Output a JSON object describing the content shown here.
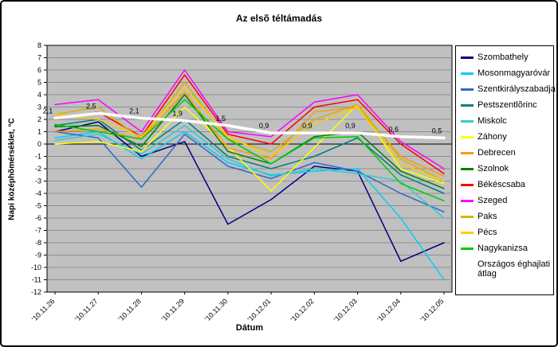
{
  "chart_data": {
    "type": "line",
    "title": "Az elsõ téltámadás",
    "xlabel": "Dátum",
    "ylabel": "Napi középhõmérséklet, °C",
    "ylim": [
      -12,
      8
    ],
    "ytick_step": 1,
    "grid": true,
    "plot_bg": "#c0c0c0",
    "grid_color": "#8f8f8f",
    "legend_position": "right",
    "categories": [
      "'10.11.26",
      "'10.11.27",
      "'10.11.28",
      "'10.11.29",
      "'10.11.30",
      "'10.12.01",
      "'10.12.02",
      "'10.12.03",
      "'10.12.04",
      "'10.12.05"
    ],
    "series": [
      {
        "name": "Szombathely",
        "color": "#000080",
        "width": 1.5,
        "values": [
          1.0,
          1.8,
          -1.0,
          0.2,
          -6.5,
          -4.5,
          -1.8,
          -2.2,
          -9.5,
          -8.0
        ]
      },
      {
        "name": "Mosonmagyaróvár",
        "color": "#00ccff",
        "width": 1.5,
        "values": [
          0.5,
          1.0,
          -1.2,
          1.0,
          -1.5,
          -2.5,
          -2.2,
          -2.0,
          -6.0,
          -11.0
        ]
      },
      {
        "name": "Szentkirályszabadja",
        "color": "#3366cc",
        "width": 1.5,
        "values": [
          1.0,
          0.5,
          -3.5,
          0.8,
          -1.8,
          -2.8,
          -1.5,
          -2.2,
          -4.0,
          -5.5
        ]
      },
      {
        "name": "Pestszentlõrinc",
        "color": "#008080",
        "width": 1.5,
        "values": [
          1.5,
          2.0,
          -0.5,
          2.0,
          -1.0,
          -2.0,
          -1.0,
          0.5,
          -2.5,
          -4.0
        ]
      },
      {
        "name": "Miskolc",
        "color": "#33cccc",
        "width": 1.5,
        "values": [
          0.3,
          0.8,
          -0.8,
          1.5,
          -1.2,
          -2.6,
          -2.0,
          -2.4,
          -3.0,
          -6.0
        ]
      },
      {
        "name": "Záhony",
        "color": "#ffff00",
        "width": 1.5,
        "values": [
          0.0,
          0.2,
          -0.6,
          3.0,
          -0.2,
          -3.8,
          -0.3,
          3.2,
          -2.0,
          -3.2
        ]
      },
      {
        "name": "Debrecen",
        "color": "#ff9900",
        "width": 1.5,
        "values": [
          1.0,
          1.2,
          0.4,
          4.2,
          -0.3,
          -1.2,
          2.6,
          3.0,
          -1.0,
          -2.6
        ]
      },
      {
        "name": "Szolnok",
        "color": "#008000",
        "width": 1.5,
        "values": [
          1.4,
          1.5,
          -0.2,
          4.0,
          -0.6,
          -1.6,
          0.6,
          1.0,
          -2.2,
          -3.6
        ]
      },
      {
        "name": "Békéscsaba",
        "color": "#ff0000",
        "width": 1.5,
        "values": [
          2.0,
          2.6,
          0.6,
          5.6,
          0.8,
          0.0,
          3.0,
          3.6,
          0.0,
          -2.4
        ]
      },
      {
        "name": "Szeged",
        "color": "#ff00ff",
        "width": 1.5,
        "values": [
          3.2,
          3.6,
          1.0,
          6.0,
          1.0,
          0.6,
          3.4,
          4.0,
          0.2,
          -2.0
        ]
      },
      {
        "name": "Paks",
        "color": "#d6b200",
        "width": 1.5,
        "values": [
          2.4,
          3.0,
          0.4,
          5.0,
          0.4,
          -0.6,
          2.0,
          3.2,
          -1.2,
          -3.0
        ]
      },
      {
        "name": "Pécs",
        "color": "#ffcc00",
        "width": 1.5,
        "values": [
          2.4,
          2.0,
          0.6,
          4.6,
          0.6,
          -1.0,
          1.6,
          3.0,
          -1.6,
          -3.0
        ]
      },
      {
        "name": "Nagykanizsa",
        "color": "#00cc00",
        "width": 1.5,
        "values": [
          1.6,
          1.0,
          0.4,
          3.6,
          0.4,
          -1.6,
          0.5,
          0.6,
          -3.2,
          -4.6
        ]
      }
    ],
    "average_series": {
      "name": "Országos éghajlati átlag",
      "color": "#ffffff",
      "width": 3.5,
      "values": [
        2.1,
        2.5,
        2.1,
        1.9,
        1.5,
        0.9,
        0.9,
        0.9,
        0.6,
        0.5
      ],
      "labels": [
        "2,1",
        "2,5",
        "2,1",
        "1,9",
        "1,5",
        "0,9",
        "0,9",
        "0,9",
        "0,6",
        "0,5"
      ]
    }
  }
}
